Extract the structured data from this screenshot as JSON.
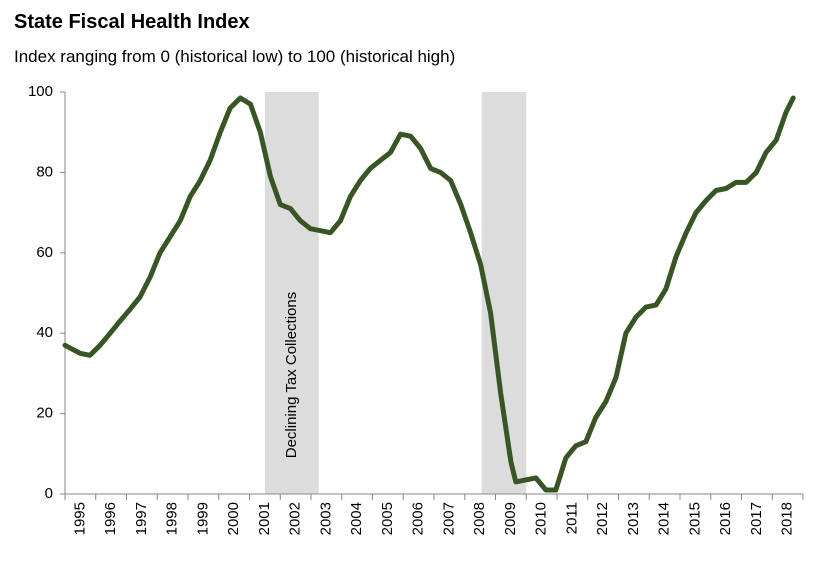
{
  "chart_data": {
    "type": "line",
    "title": "State Fiscal Health Index",
    "subtitle": "Index ranging from 0 (historical low) to 100 (historical high)",
    "annotation": "Declining Tax Collections",
    "shaded_regions": [
      {
        "start": 2001.5,
        "end": 2003.25
      },
      {
        "start": 2008.55,
        "end": 2010.0
      }
    ],
    "shade_color": "#dcdcdc",
    "x": [
      1995.0,
      1995.49,
      1995.81,
      1996.14,
      1996.47,
      1996.79,
      1997.12,
      1997.44,
      1997.77,
      1998.09,
      1998.42,
      1998.75,
      1999.07,
      1999.4,
      1999.72,
      2000.05,
      2000.37,
      2000.7,
      2001.03,
      2001.35,
      2001.68,
      2002.0,
      2002.33,
      2002.65,
      2002.98,
      2003.31,
      2003.63,
      2003.96,
      2004.28,
      2004.61,
      2004.93,
      2005.26,
      2005.59,
      2005.91,
      2006.24,
      2006.56,
      2006.89,
      2007.21,
      2007.54,
      2007.87,
      2008.19,
      2008.52,
      2008.84,
      2009.17,
      2009.5,
      2009.66,
      2009.98,
      2010.31,
      2010.64,
      2010.96,
      2011.29,
      2011.61,
      2011.94,
      2012.26,
      2012.59,
      2012.92,
      2013.24,
      2013.57,
      2013.89,
      2014.22,
      2014.54,
      2014.87,
      2015.2,
      2015.52,
      2015.85,
      2016.17,
      2016.5,
      2016.82,
      2017.15,
      2017.48,
      2017.8,
      2018.13,
      2018.45,
      2018.68
    ],
    "series": [
      {
        "color": "#375623",
        "values": [
          37,
          35,
          34.5,
          37,
          40,
          43,
          46,
          49,
          54,
          60,
          64,
          68,
          74,
          78,
          83,
          90,
          96,
          98.5,
          97,
          90,
          79,
          72,
          71,
          68,
          66,
          65.5,
          65,
          68,
          74,
          78,
          81,
          83,
          85,
          89.5,
          89,
          86,
          81,
          80,
          78,
          72,
          65,
          57,
          45,
          25,
          8,
          3,
          3.5,
          4,
          1,
          1,
          9,
          12,
          13,
          19,
          23,
          29,
          40,
          44,
          46.5,
          47,
          51,
          59,
          65,
          70,
          73,
          75.5,
          76,
          77.5,
          77.5,
          80,
          85,
          88,
          95,
          98.5
        ]
      }
    ],
    "xlim": [
      1995,
      2019
    ],
    "xticks": [
      1995,
      1996,
      1997,
      1998,
      1999,
      2000,
      2001,
      2002,
      2003,
      2004,
      2005,
      2006,
      2007,
      2008,
      2009,
      2010,
      2011,
      2012,
      2013,
      2014,
      2015,
      2016,
      2017,
      2018
    ],
    "ylim": [
      0,
      100
    ],
    "yticks": [
      0,
      20,
      40,
      60,
      80,
      100
    ],
    "grid": false
  }
}
